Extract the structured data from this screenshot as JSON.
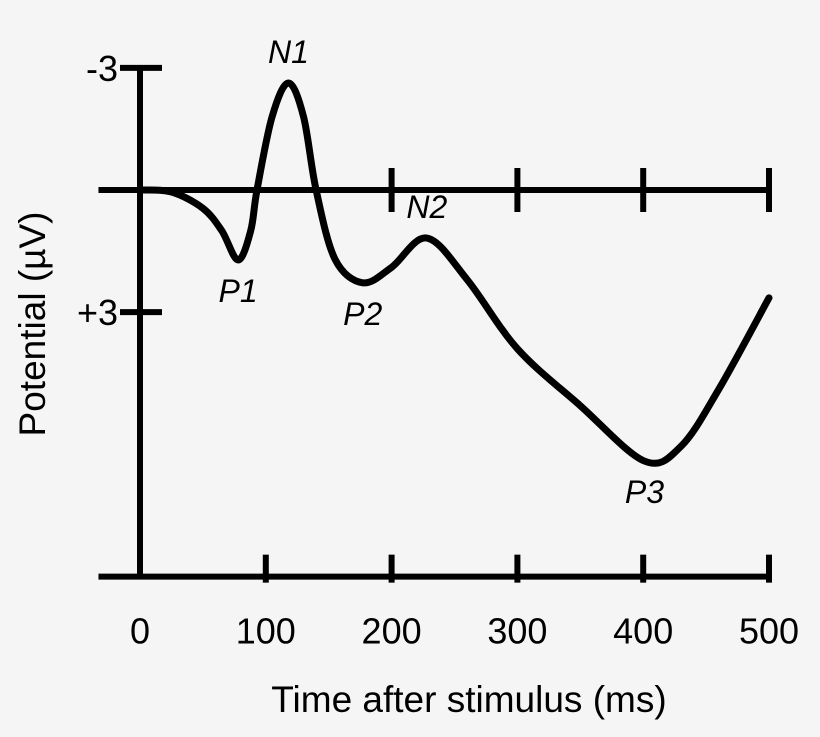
{
  "chart_data": {
    "type": "line",
    "xlabel": "Time after stimulus (ms)",
    "ylabel": "Potential (µV)",
    "x_ticks": [
      0,
      100,
      200,
      300,
      400,
      500
    ],
    "x_tick_labels": [
      "0",
      "100",
      "200",
      "300",
      "400",
      "500"
    ],
    "y_ticks": [
      -3,
      3
    ],
    "y_tick_labels": [
      "-3",
      "+3"
    ],
    "y_inverted": true,
    "xlim": [
      -33,
      500
    ],
    "ylim": [
      -3,
      9.5
    ],
    "grid": false,
    "colors": {
      "line": "#000000",
      "background": "#f5f5f5"
    },
    "series": [
      {
        "x": [
          0,
          25,
          50,
          65,
          78,
          88,
          93,
          105,
          118,
          130,
          140,
          155,
          177,
          200,
          228,
          260,
          300,
          350,
          401,
          430,
          460,
          500
        ],
        "y": [
          0,
          0.05,
          0.45,
          1.0,
          1.72,
          1.0,
          0,
          -1.8,
          -2.63,
          -1.8,
          0,
          1.7,
          2.28,
          1.9,
          1.18,
          2.2,
          3.9,
          5.3,
          6.66,
          6.3,
          4.9,
          2.65
        ]
      }
    ],
    "annotations": [
      {
        "text": "P1",
        "x": 78,
        "y": 1.72,
        "pos": "below"
      },
      {
        "text": "N1",
        "x": 118,
        "y": -2.63,
        "pos": "above"
      },
      {
        "text": "P2",
        "x": 177,
        "y": 2.28,
        "pos": "below"
      },
      {
        "text": "N2",
        "x": 228,
        "y": 1.18,
        "pos": "above"
      },
      {
        "text": "P3",
        "x": 401,
        "y": 6.66,
        "pos": "below"
      }
    ]
  }
}
